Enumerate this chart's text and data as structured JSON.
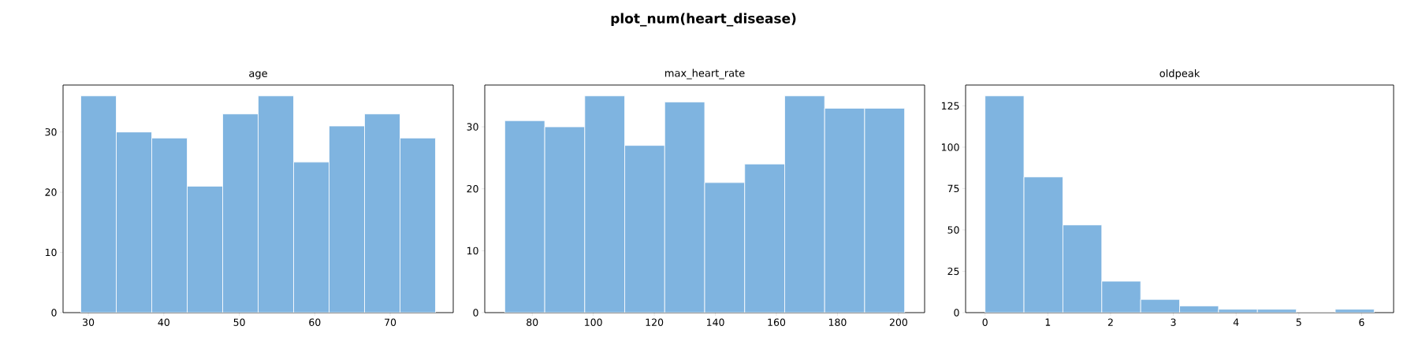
{
  "chart_data": [
    {
      "type": "histogram",
      "title": "age",
      "annotations": [
        "plot_num(heart_disease)"
      ],
      "bins": [
        29,
        33.7,
        38.4,
        43.1,
        47.8,
        52.5,
        57.2,
        61.9,
        66.6,
        71.3,
        76
      ],
      "values": [
        36,
        30,
        29,
        21,
        33,
        36,
        25,
        31,
        33,
        29
      ],
      "color": "#7fb4e0",
      "xlim": [
        26.65,
        78.35
      ],
      "ylim": [
        0,
        37.8
      ],
      "xticks": [
        30,
        40,
        50,
        60,
        70
      ],
      "yticks": [
        0,
        10,
        20,
        30
      ],
      "grid": false
    },
    {
      "type": "histogram",
      "title": "max_heart_rate",
      "bins": [
        71,
        84.1,
        97.2,
        110.3,
        123.4,
        136.5,
        149.6,
        162.7,
        175.8,
        188.9,
        202
      ],
      "values": [
        31,
        30,
        35,
        27,
        34,
        21,
        24,
        35,
        33,
        33
      ],
      "color": "#7fb4e0",
      "xlim": [
        64.45,
        208.55
      ],
      "ylim": [
        0,
        36.75
      ],
      "xticks": [
        80,
        100,
        120,
        140,
        160,
        180,
        200
      ],
      "yticks": [
        0,
        10,
        20,
        30
      ],
      "grid": false
    },
    {
      "type": "histogram",
      "title": "oldpeak",
      "bins": [
        0,
        0.62,
        1.24,
        1.86,
        2.48,
        3.1,
        3.72,
        4.34,
        4.96,
        5.58,
        6.2
      ],
      "values": [
        131,
        82,
        53,
        19,
        8,
        4,
        2,
        2,
        0,
        2
      ],
      "color": "#7fb4e0",
      "xlim": [
        -0.31,
        6.51
      ],
      "ylim": [
        0,
        137.55
      ],
      "xticks": [
        0,
        1,
        2,
        3,
        4,
        5,
        6
      ],
      "yticks": [
        0,
        25,
        50,
        75,
        100,
        125
      ],
      "grid": false
    }
  ]
}
